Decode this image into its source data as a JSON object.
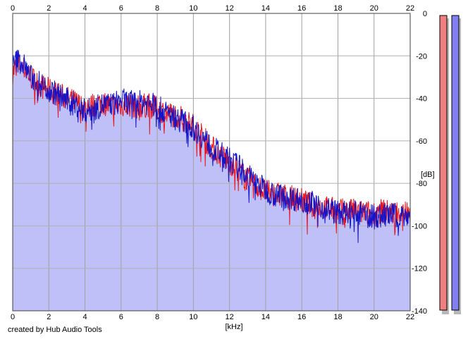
{
  "chart_data": {
    "type": "line",
    "xlabel": "[kHz]",
    "ylabel": "[dB]",
    "xlim": [
      0,
      22
    ],
    "ylim": [
      -140,
      0
    ],
    "x_ticks": [
      "0",
      "2",
      "4",
      "6",
      "8",
      "10",
      "12",
      "14",
      "16",
      "18",
      "20",
      "22"
    ],
    "y_ticks": [
      "0",
      "-20",
      "-40",
      "-60",
      "-80",
      "-100",
      "-120",
      "-140"
    ],
    "grid": true,
    "credit": "created by Hub Audio Tools",
    "colors": {
      "left": "#e8141e",
      "right": "#1414c8",
      "fill": "#c0c0f8",
      "meter_left": "#f08080",
      "meter_right": "#8080f0"
    },
    "series": [
      {
        "channel": "left",
        "x": [
          0,
          0.25,
          0.5,
          0.75,
          1,
          1.5,
          2,
          2.5,
          3,
          3.5,
          4,
          4.5,
          5,
          5.5,
          6,
          6.5,
          7,
          7.5,
          8,
          8.5,
          9,
          9.5,
          10,
          10.5,
          11,
          11.5,
          12,
          12.5,
          13,
          13.5,
          14,
          14.5,
          15,
          15.5,
          16,
          16.5,
          17,
          17.5,
          18,
          18.5,
          19,
          19.5,
          20,
          20.5,
          21,
          21.5,
          22
        ],
        "values": [
          -28,
          -24,
          -25,
          -27,
          -30,
          -34,
          -36,
          -38,
          -40,
          -42,
          -45,
          -43,
          -42,
          -44,
          -43,
          -43,
          -44,
          -43,
          -45,
          -47,
          -48,
          -50,
          -53,
          -58,
          -63,
          -67,
          -70,
          -74,
          -78,
          -81,
          -84,
          -85,
          -86,
          -87,
          -88,
          -90,
          -91,
          -92,
          -93,
          -93,
          -93,
          -94,
          -94,
          -93,
          -94,
          -93,
          -94
        ]
      },
      {
        "channel": "right",
        "x": [
          0,
          0.25,
          0.5,
          0.75,
          1,
          1.5,
          2,
          2.5,
          3,
          3.5,
          4,
          4.5,
          5,
          5.5,
          6,
          6.5,
          7,
          7.5,
          8,
          8.5,
          9,
          9.5,
          10,
          10.5,
          11,
          11.5,
          12,
          12.5,
          13,
          13.5,
          14,
          14.5,
          15,
          15.5,
          16,
          16.5,
          17,
          17.5,
          18,
          18.5,
          19,
          19.5,
          20,
          20.5,
          21,
          21.5,
          22
        ],
        "values": [
          -25,
          -22,
          -23,
          -26,
          -30,
          -33,
          -36,
          -38,
          -41,
          -43,
          -46,
          -45,
          -43,
          -43,
          -41,
          -42,
          -42,
          -42,
          -44,
          -47,
          -49,
          -51,
          -54,
          -58,
          -63,
          -66,
          -69,
          -72,
          -76,
          -80,
          -83,
          -85,
          -86,
          -87,
          -88,
          -89,
          -91,
          -92,
          -94,
          -94,
          -94,
          -95,
          -96,
          -95,
          -95,
          -95,
          -95
        ]
      }
    ]
  }
}
